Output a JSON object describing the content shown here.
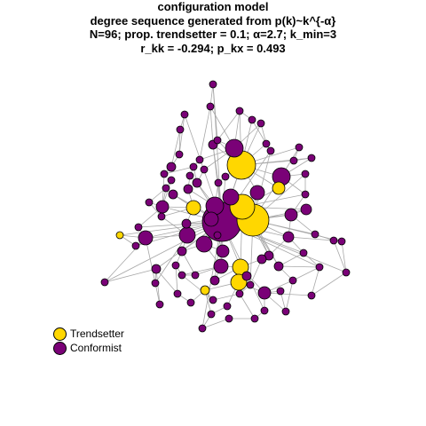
{
  "title": {
    "line1": "configuration model",
    "line2": "degree sequence generated from p(k)~k^{-α}",
    "line3": "N=96; prop. trendsetter = 0.1; α=2.7; k_min=3",
    "line4": "r_kk = -0.294; p_kx = 0.493"
  },
  "legend": {
    "trendsetter_label": "Trendsetter",
    "conformist_label": "Conformist"
  },
  "colors": {
    "trendsetter": "#FFD700",
    "conformist": "#7A0177",
    "edge": "#A8A8A8",
    "node_border": "#000000"
  }
}
